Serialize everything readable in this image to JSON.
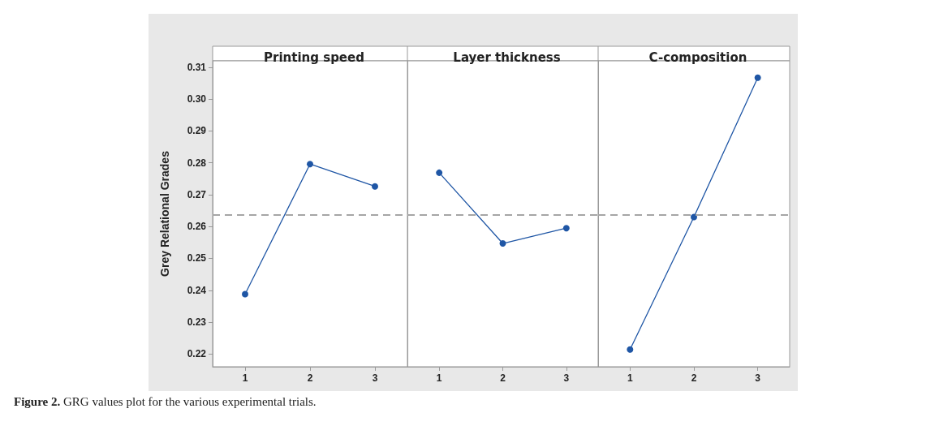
{
  "chart_data": [
    {
      "type": "line",
      "title": "Printing speed",
      "ylabel": "Grey Relational Grades",
      "categories": [
        "1",
        "2",
        "3"
      ],
      "series": [
        {
          "color": "#1f56a5",
          "values": [
            0.2388,
            0.2796,
            0.2726
          ]
        }
      ],
      "ylim": [
        0.216,
        0.312
      ],
      "yticks": [
        0.22,
        0.23,
        0.24,
        0.25,
        0.26,
        0.27,
        0.28,
        0.29,
        {
          "value": 0.3,
          "label": "0.30"
        },
        0.31
      ],
      "ref_lines": [
        {
          "axis": "y",
          "value": 0.2638,
          "color": "#a6a6a6",
          "line_style": "dashed"
        }
      ],
      "marker": "circle",
      "line_style": "solid",
      "grid": false,
      "annotations": [
        "Figure 2. GRG values plot for the various experimental trials."
      ]
    },
    {
      "type": "line",
      "title": "Layer thickness",
      "categories": [
        "1",
        "2",
        "3"
      ],
      "series": [
        {
          "color": "#1f56a5",
          "values": [
            0.2769,
            0.2547,
            0.2595
          ]
        }
      ],
      "ylim": [
        0.216,
        0.312
      ],
      "tick_labels": "x",
      "ref_lines": [
        {
          "axis": "y",
          "value": 0.2638,
          "color": "#a6a6a6",
          "line_style": "dashed"
        }
      ],
      "marker": "circle",
      "line_style": "solid",
      "grid": false
    },
    {
      "type": "line",
      "title": "C-composition",
      "categories": [
        "1",
        "2",
        "3"
      ],
      "series": [
        {
          "color": "#1f56a5",
          "values": [
            0.2214,
            0.263,
            0.3067
          ]
        }
      ],
      "ylim": [
        0.216,
        0.312
      ],
      "tick_labels": "x",
      "ref_lines": [
        {
          "axis": "y",
          "value": 0.2638,
          "color": "#a6a6a6",
          "line_style": "dashed"
        }
      ],
      "marker": "circle",
      "line_style": "solid",
      "grid": false
    }
  ]
}
